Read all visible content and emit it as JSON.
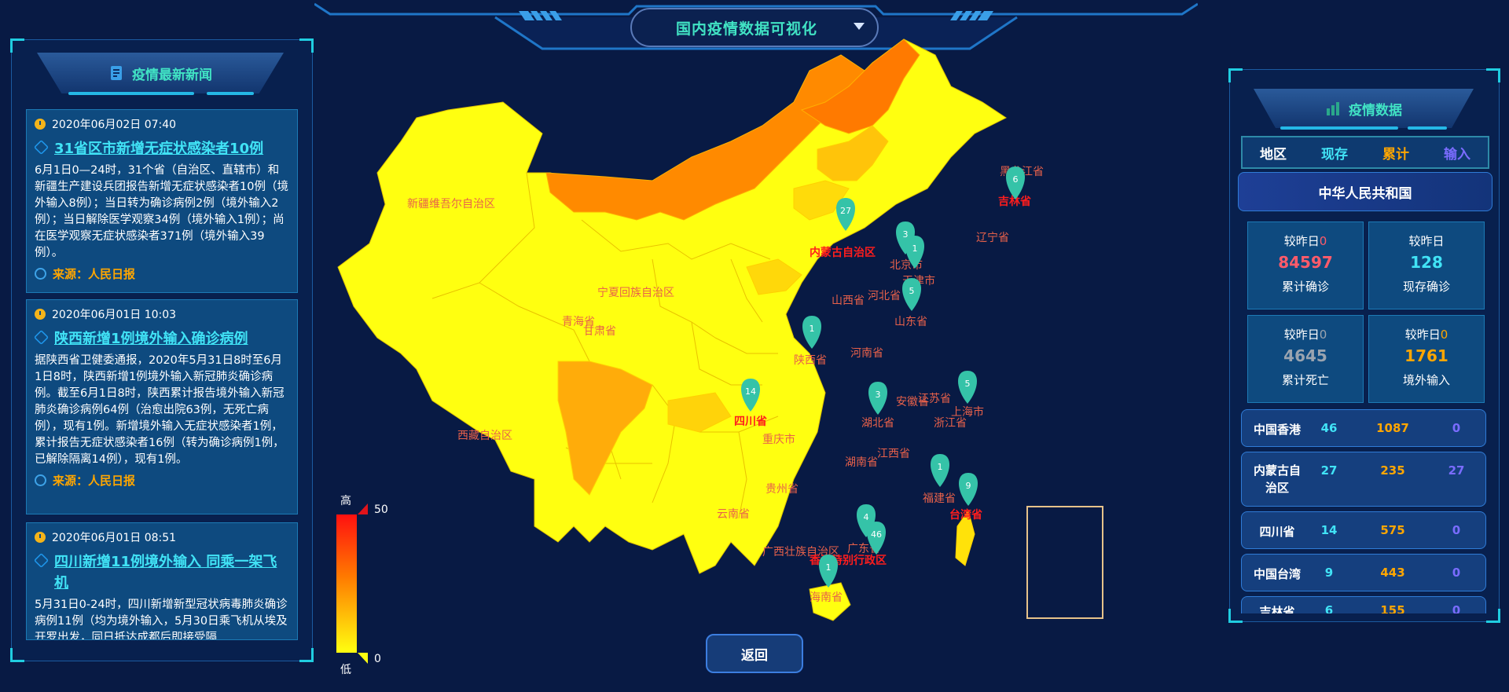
{
  "header": {
    "title": "国内疫情数据可视化"
  },
  "news_panel": {
    "title": "疫情最新新闻",
    "items": [
      {
        "time": "2020年06月02日 07:40",
        "title": "31省区市新增无症状感染者10例",
        "body": "6月1日0—24时，31个省（自治区、直辖市）和新疆生产建设兵团报告新增无症状感染者10例（境外输入8例）；当日转为确诊病例2例（境外输入2例）；当日解除医学观察34例（境外输入1例）；尚在医学观察无症状感染者371例（境外输入39例）。",
        "source": "来源：人民日报"
      },
      {
        "time": "2020年06月01日 10:03",
        "title": "陕西新增1例境外输入确诊病例",
        "body": "据陕西省卫健委通报，2020年5月31日8时至6月1日8时，陕西新增1例境外输入新冠肺炎确诊病例。截至6月1日8时，陕西累计报告境外输入新冠肺炎确诊病例64例（治愈出院63例，无死亡病例），现有1例。新增境外输入无症状感染者1例，累计报告无症状感染者16例（转为确诊病例1例，已解除隔离14例），现有1例。",
        "source": "来源：人民日报"
      },
      {
        "time": "2020年06月01日 08:51",
        "title": "四川新增11例境外输入 同乘一架飞机",
        "body": "5月31日0-24时，四川新增新型冠状病毒肺炎确诊病例11例（均为境外输入，5月30日乘飞机从埃及开罗出发，同日抵达成都后即接受隔",
        "source": ""
      }
    ]
  },
  "map": {
    "regions": [
      {
        "name": "新疆维吾尔自治区",
        "fill": "#ffff10"
      },
      {
        "name": "西藏自治区",
        "fill": "#ffff10"
      },
      {
        "name": "青海省",
        "fill": "#ffff10"
      },
      {
        "name": "内蒙古自治区",
        "fill": "#ff8a00"
      },
      {
        "name": "黑龙江省",
        "fill": "#ff7a00"
      },
      {
        "name": "吉林省",
        "fill": "#ffc40a"
      },
      {
        "name": "四川省",
        "fill": "#ffac0a"
      },
      {
        "name": "台湾省",
        "fill": "#ffe20a"
      }
    ],
    "labels": [
      "新疆维吾尔自治区",
      "西藏自治区",
      "青海省",
      "甘肃省",
      "宁夏回族自治区",
      "内蒙古自治区",
      "黑龙江省",
      "吉林省",
      "辽宁省",
      "北京市",
      "天津市",
      "河北省",
      "山西省",
      "山东省",
      "陕西省",
      "河南省",
      "四川省",
      "重庆市",
      "湖北省",
      "安徽省",
      "江苏省",
      "上海市",
      "浙江省",
      "江西省",
      "湖南省",
      "贵州省",
      "云南省",
      "广西壮族自治区",
      "广东省",
      "福建省",
      "台湾省",
      "香港特别行政区",
      "海南省"
    ],
    "pins": [
      {
        "label": "27",
        "region": "内蒙古自治区"
      },
      {
        "label": "6",
        "region": "黑龙江省"
      },
      {
        "label": "3",
        "region": "北京市"
      },
      {
        "label": "1",
        "region": "天津市"
      },
      {
        "label": "5",
        "region": "山东省"
      },
      {
        "label": "1",
        "region": "陕西省"
      },
      {
        "label": "14",
        "region": "四川省"
      },
      {
        "label": "3",
        "region": "湖北省"
      },
      {
        "label": "5",
        "region": "上海市"
      },
      {
        "label": "1",
        "region": "福建省"
      },
      {
        "label": "9",
        "region": "台湾省"
      },
      {
        "label": "4",
        "region": "广东省"
      },
      {
        "label": "46",
        "region": "香港特别行政区"
      },
      {
        "label": "1",
        "region": "海南省"
      }
    ],
    "legend": {
      "high": "高",
      "low": "低",
      "max": "50",
      "min": "0",
      "high_color": "#ff1010",
      "low_color": "#ffff10"
    }
  },
  "back_button": {
    "label": "返回"
  },
  "stats_panel": {
    "title": "疫情数据",
    "tabs": [
      {
        "label": "地区",
        "color": "#ffffff"
      },
      {
        "label": "现存",
        "color": "#41e3f6"
      },
      {
        "label": "累计",
        "color": "#ffa600"
      },
      {
        "label": "输入",
        "color": "#7a6cff"
      }
    ],
    "country": "中华人民共和国",
    "compare_label": "较昨日",
    "cards": [
      {
        "delta": "0",
        "value": "84597",
        "caption": "累计确诊",
        "color": "#ff5b6a"
      },
      {
        "delta": "",
        "value": "128",
        "caption": "现存确诊",
        "color": "#41e3f6"
      },
      {
        "delta": "0",
        "value": "4645",
        "caption": "累计死亡",
        "color": "#9aa4b0"
      },
      {
        "delta": "0",
        "value": "1761",
        "caption": "境外输入",
        "color": "#ffa600"
      }
    ],
    "rows": [
      {
        "region": "中国香港",
        "current": "46",
        "total": "1087",
        "imported": "0"
      },
      {
        "region": "内蒙古自治区",
        "current": "27",
        "total": "235",
        "imported": "27"
      },
      {
        "region": "四川省",
        "current": "14",
        "total": "575",
        "imported": "0"
      },
      {
        "region": "中国台湾",
        "current": "9",
        "total": "443",
        "imported": "0"
      },
      {
        "region": "吉林省",
        "current": "6",
        "total": "155",
        "imported": "0"
      }
    ]
  }
}
